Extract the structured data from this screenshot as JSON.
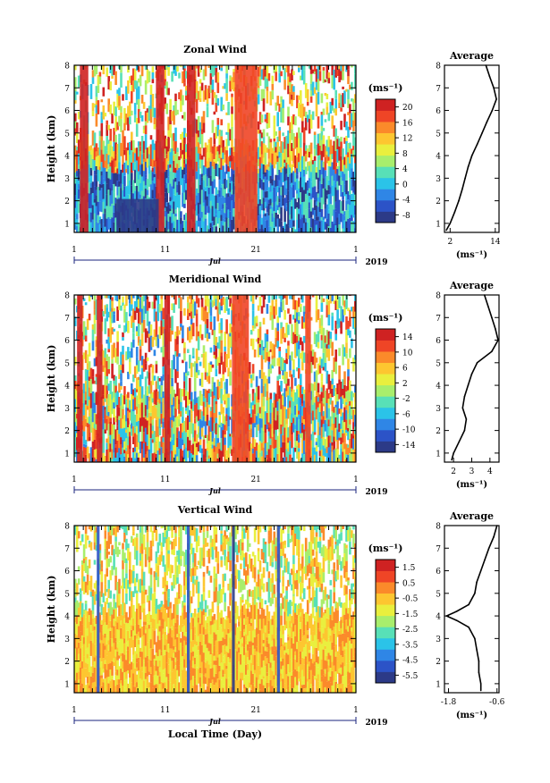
{
  "chart_data": [
    {
      "type": "heatmap",
      "title": "Zonal Wind",
      "ylabel": "Height (km)",
      "xlabel": "",
      "x_ticks": [
        "1",
        "11",
        "21",
        "1"
      ],
      "x_month": "Jul",
      "x_year": "2019",
      "y_ticks": [
        "1",
        "2",
        "3",
        "4",
        "5",
        "6",
        "7",
        "8"
      ],
      "ylim": [
        0.6,
        8
      ],
      "colorbar_unit": "(ms⁻¹)",
      "colorbar_ticks": [
        "20",
        "16",
        "12",
        "8",
        "4",
        "0",
        "-4",
        "-8"
      ],
      "colorbar_range": [
        -10,
        22
      ],
      "profile": {
        "title": "Average",
        "x_ticks": [
          "2",
          "14"
        ],
        "xlim": [
          0.5,
          15
        ],
        "xlabel": "(ms⁻¹)",
        "y_ticks": [
          "1",
          "2",
          "3",
          "4",
          "5",
          "6",
          "7",
          "8"
        ],
        "heights": [
          0.7,
          1.0,
          1.5,
          2.0,
          2.5,
          3.0,
          3.5,
          4.0,
          4.5,
          5.0,
          5.5,
          6.0,
          6.5,
          7.0,
          7.5,
          8.0
        ],
        "values": [
          1.0,
          2.0,
          3.2,
          4.3,
          5.2,
          6.0,
          6.8,
          7.8,
          9.2,
          10.5,
          11.8,
          13.2,
          14.3,
          13.6,
          12.5,
          11.5
        ]
      }
    },
    {
      "type": "heatmap",
      "title": "Meridional Wind",
      "ylabel": "Height (km)",
      "xlabel": "",
      "x_ticks": [
        "1",
        "11",
        "21",
        "1"
      ],
      "x_month": "Jul",
      "x_year": "2019",
      "y_ticks": [
        "1",
        "2",
        "3",
        "4",
        "5",
        "6",
        "7",
        "8"
      ],
      "ylim": [
        0.6,
        8
      ],
      "colorbar_unit": "(ms⁻¹)",
      "colorbar_ticks": [
        "14",
        "10",
        "6",
        "2",
        "-2",
        "-6",
        "-10",
        "-14"
      ],
      "colorbar_range": [
        -16,
        16
      ],
      "profile": {
        "title": "Average",
        "x_ticks": [
          "2",
          "3",
          "4"
        ],
        "xlim": [
          1.5,
          4.5
        ],
        "xlabel": "(ms⁻¹)",
        "y_ticks": [
          "1",
          "2",
          "3",
          "4",
          "5",
          "6",
          "7",
          "8"
        ],
        "heights": [
          0.7,
          1.0,
          1.5,
          2.0,
          2.5,
          3.0,
          3.5,
          4.0,
          4.5,
          5.0,
          5.5,
          6.0,
          6.5,
          7.0,
          7.5,
          8.0
        ],
        "values": [
          1.9,
          2.0,
          2.3,
          2.6,
          2.7,
          2.5,
          2.6,
          2.8,
          3.0,
          3.3,
          4.1,
          4.45,
          4.3,
          4.1,
          3.9,
          3.7
        ]
      }
    },
    {
      "type": "heatmap",
      "title": "Vertical Wind",
      "ylabel": "Height (km)",
      "xlabel": "Local Time (Day)",
      "x_ticks": [
        "1",
        "11",
        "21",
        "1"
      ],
      "x_month": "Jul",
      "x_year": "2019",
      "y_ticks": [
        "1",
        "2",
        "3",
        "4",
        "5",
        "6",
        "7",
        "8"
      ],
      "ylim": [
        0.6,
        8
      ],
      "colorbar_unit": "(ms⁻¹)",
      "colorbar_ticks": [
        "1.5",
        "0.5",
        "-0.5",
        "-1.5",
        "-2.5",
        "-3.5",
        "-4.5",
        "-5.5"
      ],
      "colorbar_range": [
        -6,
        2
      ],
      "profile": {
        "title": "Average",
        "x_ticks": [
          "-1.8",
          "-0.6"
        ],
        "xlim": [
          -1.9,
          -0.55
        ],
        "xlabel": "(ms⁻¹)",
        "y_ticks": [
          "1",
          "2",
          "3",
          "4",
          "5",
          "6",
          "7",
          "8"
        ],
        "heights": [
          0.7,
          1.0,
          1.5,
          2.0,
          2.5,
          3.0,
          3.5,
          3.8,
          4.0,
          4.2,
          4.5,
          5.0,
          5.5,
          6.0,
          6.5,
          7.0,
          7.5,
          8.0
        ],
        "values": [
          -1.0,
          -1.0,
          -1.05,
          -1.05,
          -1.1,
          -1.15,
          -1.3,
          -1.6,
          -1.85,
          -1.6,
          -1.3,
          -1.15,
          -1.1,
          -1.0,
          -0.9,
          -0.8,
          -0.68,
          -0.6
        ]
      }
    }
  ],
  "colors": {
    "colormap": [
      "#2c3a87",
      "#2c53c7",
      "#2f86e6",
      "#2bc3e8",
      "#58e0b7",
      "#a8ee6c",
      "#e9ef3e",
      "#fdc630",
      "#fb8a2a",
      "#ef4526",
      "#cf2222"
    ]
  }
}
